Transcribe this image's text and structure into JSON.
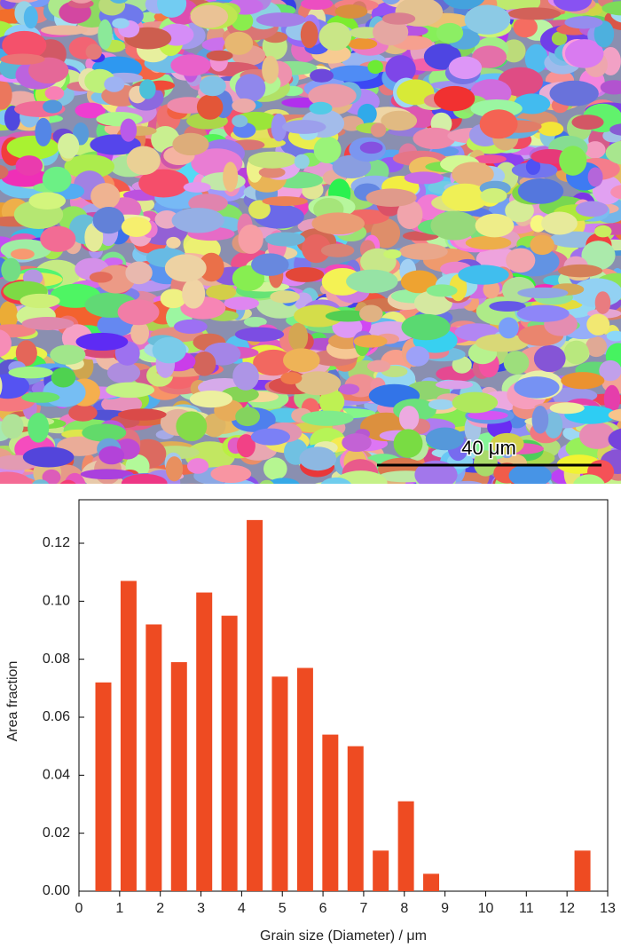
{
  "micrograph": {
    "scale_bar_label": "40 μm"
  },
  "chart_data": {
    "type": "bar",
    "x": [
      0.6,
      1.22,
      1.84,
      2.46,
      3.08,
      3.7,
      4.32,
      4.94,
      5.56,
      6.18,
      6.8,
      7.42,
      8.04,
      8.66,
      9.28,
      9.9,
      10.52,
      11.14,
      11.76,
      12.38
    ],
    "values": [
      0.072,
      0.107,
      0.092,
      0.079,
      0.103,
      0.095,
      0.128,
      0.074,
      0.077,
      0.054,
      0.05,
      0.014,
      0.031,
      0.006,
      0,
      0,
      0,
      0,
      0,
      0.014
    ],
    "color": "#ee4b22",
    "x_label": "Grain size (Diameter) / μm",
    "y_label": "Area fraction",
    "xlim": [
      0,
      13
    ],
    "xticks": [
      0,
      1,
      2,
      3,
      4,
      5,
      6,
      7,
      8,
      9,
      10,
      11,
      12,
      13
    ],
    "ylim": [
      0,
      0.135
    ],
    "yticks": [
      {
        "value": 0,
        "label": "0.00"
      },
      {
        "value": 0.02,
        "label": "0.02"
      },
      {
        "value": 0.04,
        "label": "0.04"
      },
      {
        "value": 0.06,
        "label": "0.06"
      },
      {
        "value": 0.08,
        "label": "0.08"
      },
      {
        "value": 0.1,
        "label": "0.10"
      },
      {
        "value": 0.12,
        "label": "0.12"
      }
    ],
    "grid": false
  }
}
